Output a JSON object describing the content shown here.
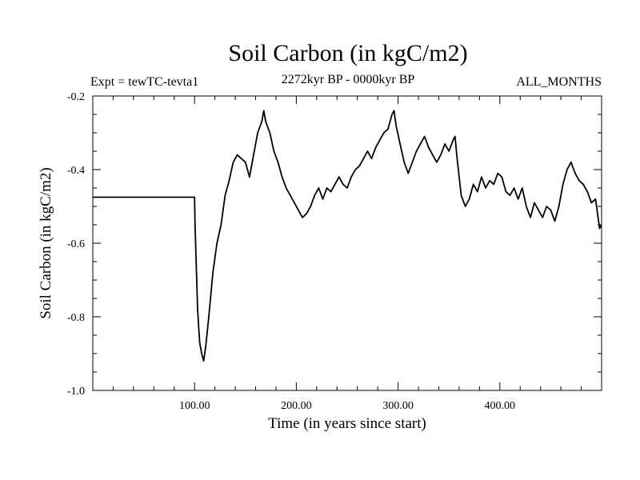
{
  "chart_data": {
    "type": "line",
    "title": "Soil Carbon (in kgC/m2)",
    "subtitle_left": "Expt = tewTC-tevta1",
    "subtitle_center": "2272kyr BP - 0000kyr BP",
    "subtitle_right": "ALL_MONTHS",
    "xlabel": "Time (in years since start)",
    "ylabel": "Soil Carbon (in kgC/m2)",
    "xlim": [
      0,
      500
    ],
    "ylim": [
      -1.0,
      -0.2
    ],
    "x_ticks": [
      100,
      200,
      300,
      400
    ],
    "x_tick_labels": [
      "100.00",
      "200.00",
      "300.00",
      "400.00"
    ],
    "y_ticks": [
      -1.0,
      -0.8,
      -0.6,
      -0.4,
      -0.2
    ],
    "y_tick_labels": [
      "-1.0",
      "-0.8",
      "-0.6",
      "-0.4",
      "-0.2"
    ],
    "series": [
      {
        "name": "Soil Carbon",
        "x": [
          0,
          100,
          100.5,
          103,
          105,
          107,
          109,
          111,
          114,
          118,
          122,
          126,
          130,
          134,
          138,
          142,
          146,
          150,
          154,
          158,
          162,
          166,
          168,
          170,
          174,
          178,
          182,
          186,
          190,
          194,
          198,
          202,
          206,
          210,
          214,
          218,
          222,
          226,
          230,
          234,
          238,
          242,
          246,
          250,
          254,
          258,
          262,
          266,
          270,
          274,
          278,
          282,
          286,
          290,
          294,
          296,
          298,
          302,
          306,
          310,
          314,
          318,
          322,
          326,
          330,
          334,
          338,
          342,
          346,
          350,
          354,
          356,
          358,
          362,
          366,
          370,
          374,
          378,
          382,
          386,
          390,
          394,
          398,
          402,
          406,
          410,
          414,
          418,
          422,
          426,
          430,
          434,
          438,
          442,
          446,
          450,
          454,
          458,
          462,
          466,
          470,
          474,
          478,
          482,
          486,
          490,
          494,
          498,
          500
        ],
        "y": [
          -0.475,
          -0.475,
          -0.55,
          -0.78,
          -0.87,
          -0.9,
          -0.92,
          -0.88,
          -0.8,
          -0.68,
          -0.6,
          -0.55,
          -0.47,
          -0.43,
          -0.38,
          -0.36,
          -0.37,
          -0.38,
          -0.42,
          -0.36,
          -0.3,
          -0.27,
          -0.24,
          -0.27,
          -0.3,
          -0.35,
          -0.38,
          -0.42,
          -0.45,
          -0.47,
          -0.49,
          -0.51,
          -0.53,
          -0.52,
          -0.5,
          -0.47,
          -0.45,
          -0.48,
          -0.45,
          -0.46,
          -0.44,
          -0.42,
          -0.44,
          -0.45,
          -0.42,
          -0.4,
          -0.39,
          -0.37,
          -0.35,
          -0.37,
          -0.34,
          -0.32,
          -0.3,
          -0.29,
          -0.25,
          -0.24,
          -0.28,
          -0.33,
          -0.38,
          -0.41,
          -0.38,
          -0.35,
          -0.33,
          -0.31,
          -0.34,
          -0.36,
          -0.38,
          -0.36,
          -0.33,
          -0.35,
          -0.32,
          -0.31,
          -0.37,
          -0.47,
          -0.5,
          -0.48,
          -0.44,
          -0.46,
          -0.42,
          -0.45,
          -0.43,
          -0.44,
          -0.41,
          -0.42,
          -0.46,
          -0.47,
          -0.45,
          -0.48,
          -0.45,
          -0.5,
          -0.53,
          -0.49,
          -0.51,
          -0.53,
          -0.5,
          -0.51,
          -0.54,
          -0.5,
          -0.44,
          -0.4,
          -0.38,
          -0.41,
          -0.43,
          -0.44,
          -0.46,
          -0.49,
          -0.48,
          -0.56,
          -0.55
        ]
      }
    ]
  }
}
